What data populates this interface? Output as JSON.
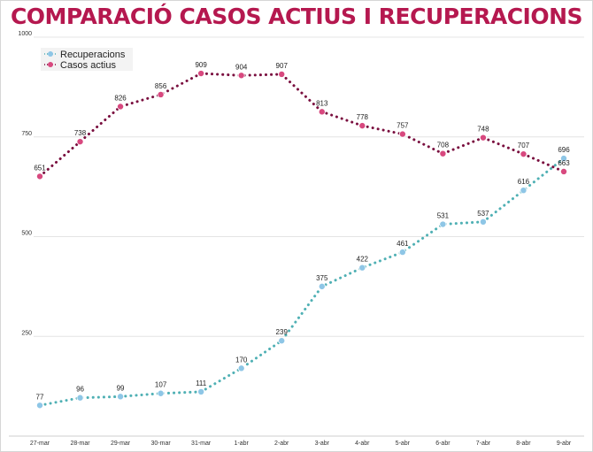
{
  "chart_data": {
    "type": "line",
    "title": "COMPARACIÓ CASOS ACTIUS I RECUPERACIONS",
    "xlabel": "",
    "ylabel": "",
    "categories": [
      "27-mar",
      "28-mar",
      "29-mar",
      "30-mar",
      "31-mar",
      "1-abr",
      "2-abr",
      "3-abr",
      "4-abr",
      "5-abr",
      "6-abr",
      "7-abr",
      "8-abr",
      "9-abr"
    ],
    "ylim": [
      0,
      1000
    ],
    "yticks": [
      "250",
      "500",
      "750",
      "1000"
    ],
    "grid": true,
    "legend": "top-left",
    "series": [
      {
        "name": "Recuperacions",
        "color": "#8ec6e6",
        "line_color": "#4fb0b4",
        "values": [
          77,
          96,
          99,
          107,
          111,
          170,
          239,
          375,
          422,
          461,
          531,
          537,
          616,
          696
        ],
        "labels": [
          "77",
          "96",
          "99",
          "107",
          "111",
          "170",
          "239",
          "375",
          "422",
          "461",
          "531",
          "537",
          "616",
          "696"
        ]
      },
      {
        "name": "Casos actius",
        "color": "#d8497f",
        "line_color": "#7a0f3f",
        "values": [
          651,
          738,
          826,
          856,
          909,
          904,
          907,
          813,
          778,
          757,
          708,
          748,
          707,
          663
        ],
        "labels": [
          "651",
          "738",
          "826",
          "856",
          "909",
          "904",
          "907",
          "813",
          "778",
          "757",
          "708",
          "748",
          "707",
          "663"
        ]
      }
    ]
  }
}
